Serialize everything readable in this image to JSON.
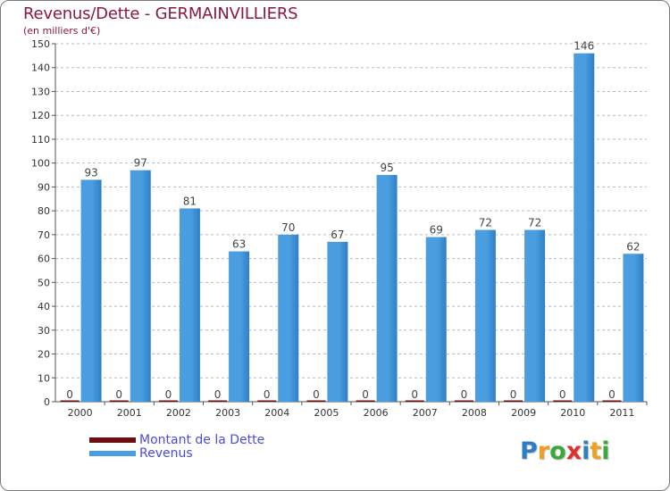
{
  "header": {
    "title": "Revenus/Dette - GERMAINVILLIERS",
    "subtitle": "(en milliers d'€)"
  },
  "colors": {
    "dette": "#6b0f0f",
    "revenus": "#4a9ee0",
    "revenus_dark": "#2f7fc6",
    "grid": "#bbbbbb",
    "axis": "#555555"
  },
  "chart_data": {
    "type": "bar",
    "title": "Revenus/Dette - GERMAINVILLIERS",
    "subtitle": "(en milliers d'€)",
    "xlabel": "",
    "ylabel": "",
    "ylim": [
      0,
      150
    ],
    "yticks": [
      0,
      10,
      20,
      30,
      40,
      50,
      60,
      70,
      80,
      90,
      100,
      110,
      120,
      130,
      140,
      150
    ],
    "grid": "horizontal-dashed",
    "categories": [
      "2000",
      "2001",
      "2002",
      "2003",
      "2004",
      "2005",
      "2006",
      "2007",
      "2008",
      "2009",
      "2010",
      "2011"
    ],
    "series": [
      {
        "name": "Montant de la Dette",
        "values": [
          0,
          0,
          0,
          0,
          0,
          0,
          0,
          0,
          0,
          0,
          0,
          0
        ]
      },
      {
        "name": "Revenus",
        "values": [
          93,
          97,
          81,
          63,
          70,
          67,
          95,
          69,
          72,
          72,
          146,
          62
        ]
      }
    ],
    "legend_position": "bottom-left"
  },
  "legend": {
    "items": [
      {
        "label": "Montant de la Dette",
        "color": "#6b0f0f"
      },
      {
        "label": "Revenus",
        "color": "#4a9ee0"
      }
    ]
  },
  "logo": {
    "text": "Proxiti",
    "letters": [
      {
        "ch": "P",
        "color": "#2f7fc6"
      },
      {
        "ch": "r",
        "color": "#f0a020"
      },
      {
        "ch": "o",
        "color": "#3aa83a"
      },
      {
        "ch": "x",
        "color": "#e03030"
      },
      {
        "ch": "i",
        "color": "#2f7fc6"
      },
      {
        "ch": "t",
        "color": "#f0a020"
      },
      {
        "ch": "i",
        "color": "#3aa83a"
      }
    ]
  }
}
